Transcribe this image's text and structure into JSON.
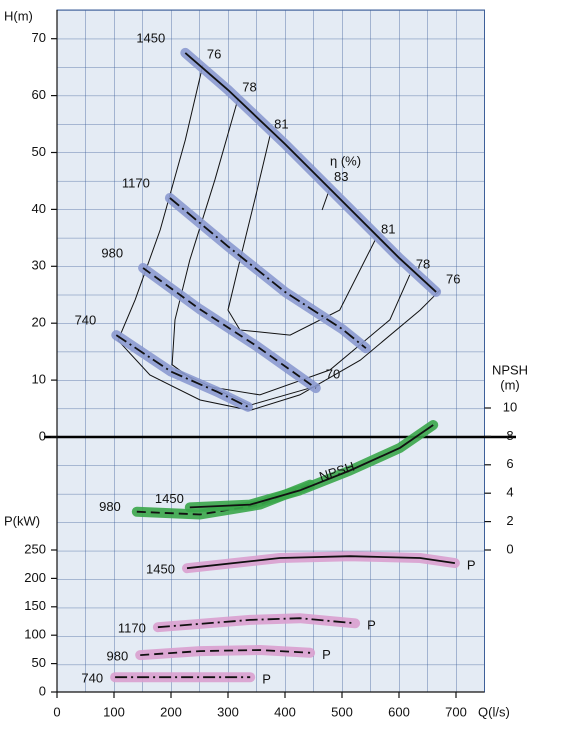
{
  "chart_data": [
    {
      "type": "line",
      "y_label": "H(m)",
      "xlim": [
        0,
        750
      ],
      "ylim": [
        0,
        75
      ],
      "yticks": [
        0,
        10,
        20,
        30,
        40,
        50,
        60,
        70
      ],
      "series": [
        {
          "name": "1450",
          "color": "#8b9ad0",
          "style": "solid",
          "x": [
            225,
            300,
            400,
            500,
            600,
            665
          ],
          "values": [
            67.5,
            61,
            51.5,
            41.5,
            31.5,
            25.5
          ]
        },
        {
          "name": "1170",
          "color": "#8b9ad0",
          "style": "dashdot",
          "x": [
            198,
            300,
            400,
            500,
            542
          ],
          "values": [
            42,
            33.5,
            25.5,
            19,
            15.6
          ]
        },
        {
          "name": "980",
          "color": "#8b9ad0",
          "style": "dashed",
          "x": [
            151,
            250,
            350,
            454
          ],
          "values": [
            29.7,
            22.5,
            16,
            8.6
          ]
        },
        {
          "name": "740",
          "color": "#8b9ad0",
          "style": "dashdot",
          "x": [
            104,
            200,
            280,
            335
          ],
          "values": [
            17.9,
            11.5,
            8,
            5.3
          ]
        }
      ],
      "contours_label": "η (%)",
      "contours": [
        {
          "name": "76",
          "x": [
            256,
            225,
            181,
            137,
            107,
            163,
            251,
            339,
            426,
            532,
            637,
            672
          ],
          "values": [
            65.4,
            52.2,
            36.4,
            24.1,
            17,
            10.9,
            6.5,
            4.7,
            7.4,
            13.5,
            22.3,
            25.8
          ]
        },
        {
          "name": "78",
          "x": [
            318,
            277,
            233,
            207,
            202,
            251,
            356,
            479,
            584,
            619
          ],
          "values": [
            59.6,
            45.2,
            31.1,
            20.6,
            12.7,
            9.1,
            7.4,
            11.8,
            20.6,
            28.5
          ]
        },
        {
          "name": "81",
          "x": [
            374,
            347,
            321,
            300,
            321,
            409,
            496,
            558
          ],
          "values": [
            53.1,
            41.7,
            31.1,
            22.3,
            18.8,
            17.9,
            22.3,
            34.6
          ]
        },
        {
          "name": "83",
          "x": [
            479,
            465
          ],
          "values": [
            43.8,
            39.9
          ]
        },
        {
          "name": "70",
          "x": [
            207,
            339,
            461
          ],
          "values": [
            11.8,
            5.6,
            9.1
          ]
        }
      ]
    },
    {
      "type": "line",
      "y_label": [
        "NPSH",
        "(m)"
      ],
      "ylim": [
        0,
        10
      ],
      "yticks": [
        0,
        2,
        4,
        6,
        8,
        10
      ],
      "curve_label": "NPSH",
      "series": [
        {
          "name": "980",
          "color": "#3aa64a",
          "style": "dashed",
          "x": [
            140,
            251,
            356,
            444
          ],
          "values": [
            2.7,
            2.5,
            3.2,
            4.6
          ]
        },
        {
          "name": "1450",
          "color": "#3aa64a",
          "style": "solid",
          "x": [
            233,
            339,
            426,
            514,
            602,
            660
          ],
          "values": [
            3,
            3.2,
            4.2,
            5.6,
            7.2,
            8.8
          ]
        }
      ]
    },
    {
      "type": "line",
      "y_label": "P(kW)",
      "x_label": "Q(l/s)",
      "xticks": [
        0,
        100,
        200,
        300,
        400,
        500,
        600,
        700
      ],
      "ylim": [
        0,
        250
      ],
      "yticks": [
        0,
        50,
        100,
        150,
        200,
        250
      ],
      "curve_label": "P",
      "series": [
        {
          "name": "1450",
          "color": "#d9a0cf",
          "style": "solid",
          "x": [
            228,
            391,
            514,
            637,
            698
          ],
          "values": [
            218,
            236,
            239,
            236,
            227
          ]
        },
        {
          "name": "1170",
          "color": "#d9a0cf",
          "style": "dashdot",
          "x": [
            177,
            339,
            426,
            523
          ],
          "values": [
            114,
            127,
            130,
            121
          ]
        },
        {
          "name": "980",
          "color": "#d9a0cf",
          "style": "dashed",
          "x": [
            146,
            251,
            356,
            444
          ],
          "values": [
            65,
            72,
            74,
            69
          ]
        },
        {
          "name": "740",
          "color": "#d9a0cf",
          "style": "dashdot",
          "x": [
            102,
            251,
            339
          ],
          "values": [
            26,
            26,
            26
          ]
        }
      ]
    }
  ]
}
